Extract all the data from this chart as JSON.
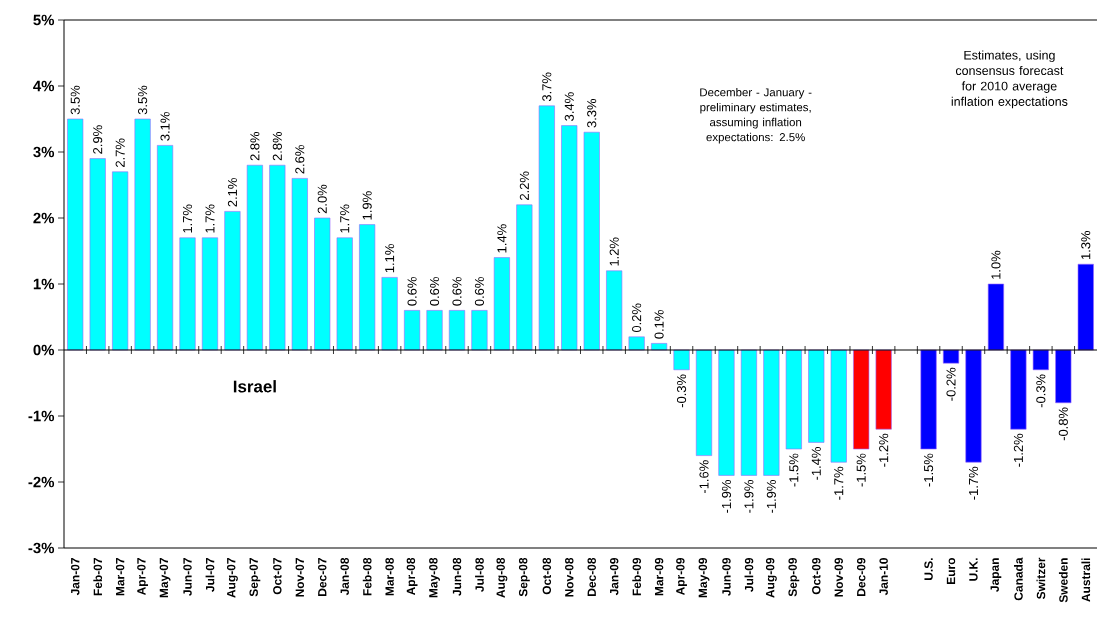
{
  "chart_data": {
    "type": "bar",
    "categories": [
      "Jan-07",
      "Feb-07",
      "Mar-07",
      "Apr-07",
      "May-07",
      "Jun-07",
      "Jul-07",
      "Aug-07",
      "Sep-07",
      "Oct-07",
      "Nov-07",
      "Dec-07",
      "Jan-08",
      "Feb-08",
      "Mar-08",
      "Apr-08",
      "May-08",
      "Jun-08",
      "Jul-08",
      "Aug-08",
      "Sep-08",
      "Oct-08",
      "Nov-08",
      "Dec-08",
      "Jan-09",
      "Feb-09",
      "Mar-09",
      "Apr-09",
      "May-09",
      "Jun-09",
      "Jul-09",
      "Aug-09",
      "Sep-09",
      "Oct-09",
      "Nov-09",
      "Dec-09",
      "Jan-10",
      null,
      "U.S.",
      "Euro",
      "U.K.",
      "Japan",
      "Canada",
      "Switzer",
      "Sweden",
      "Australi"
    ],
    "values": [
      3.5,
      2.9,
      2.7,
      3.5,
      3.1,
      1.7,
      1.7,
      2.1,
      2.8,
      2.8,
      2.6,
      2.0,
      1.7,
      1.9,
      1.1,
      0.6,
      0.6,
      0.6,
      0.6,
      1.4,
      2.2,
      3.7,
      3.4,
      3.3,
      1.2,
      0.2,
      0.1,
      -0.3,
      -1.6,
      -1.9,
      -1.9,
      -1.9,
      -1.5,
      -1.4,
      -1.7,
      -1.5,
      -1.2,
      null,
      -1.5,
      -0.2,
      -1.7,
      1.0,
      -1.2,
      -0.3,
      -0.8,
      1.3
    ],
    "value_labels": [
      "3.5%",
      "2.9%",
      "2.7%",
      "3.5%",
      "3.1%",
      "1.7%",
      "1.7%",
      "2.1%",
      "2.8%",
      "2.8%",
      "2.6%",
      "2.0%",
      "1.7%",
      "1.9%",
      "1.1%",
      "0.6%",
      "0.6%",
      "0.6%",
      "0.6%",
      "1.4%",
      "2.2%",
      "3.7%",
      "3.4%",
      "3.3%",
      "1.2%",
      "0.2%",
      "0.1%",
      "-0.3%",
      "-1.6%",
      "-1.9%",
      "-1.9%",
      "-1.9%",
      "-1.5%",
      "-1.4%",
      "-1.7%",
      "-1.5%",
      "-1.2%",
      null,
      "-1.5%",
      "-0.2%",
      "-1.7%",
      "1.0%",
      "-1.2%",
      "-0.3%",
      "-0.8%",
      "1.3%"
    ],
    "colors": [
      "#00ffff",
      "#00ffff",
      "#00ffff",
      "#00ffff",
      "#00ffff",
      "#00ffff",
      "#00ffff",
      "#00ffff",
      "#00ffff",
      "#00ffff",
      "#00ffff",
      "#00ffff",
      "#00ffff",
      "#00ffff",
      "#00ffff",
      "#00ffff",
      "#00ffff",
      "#00ffff",
      "#00ffff",
      "#00ffff",
      "#00ffff",
      "#00ffff",
      "#00ffff",
      "#00ffff",
      "#00ffff",
      "#00ffff",
      "#00ffff",
      "#00ffff",
      "#00ffff",
      "#00ffff",
      "#00ffff",
      "#00ffff",
      "#00ffff",
      "#00ffff",
      "#00ffff",
      "#ff0000",
      "#ff0000",
      null,
      "#0000ff",
      "#0000ff",
      "#0000ff",
      "#0000ff",
      "#0000ff",
      "#0000ff",
      "#0000ff",
      "#0000ff"
    ],
    "ylim": [
      -3,
      5
    ],
    "yticks": [
      {
        "value": -3,
        "label": "-3%"
      },
      {
        "value": -2,
        "label": "-2%"
      },
      {
        "value": -1,
        "label": "-1%"
      },
      {
        "value": 0,
        "label": "0%"
      },
      {
        "value": 1,
        "label": "1%"
      },
      {
        "value": 2,
        "label": "2%"
      },
      {
        "value": 3,
        "label": "3%"
      },
      {
        "value": 4,
        "label": "4%"
      },
      {
        "value": 5,
        "label": "5%"
      }
    ],
    "annotations": [
      "Israel",
      "December - January  - preliminary estimates, assuming inflation expectations: 2.5%",
      "Estimates, using consensus forecast for 2010 average inflation expectations"
    ]
  }
}
